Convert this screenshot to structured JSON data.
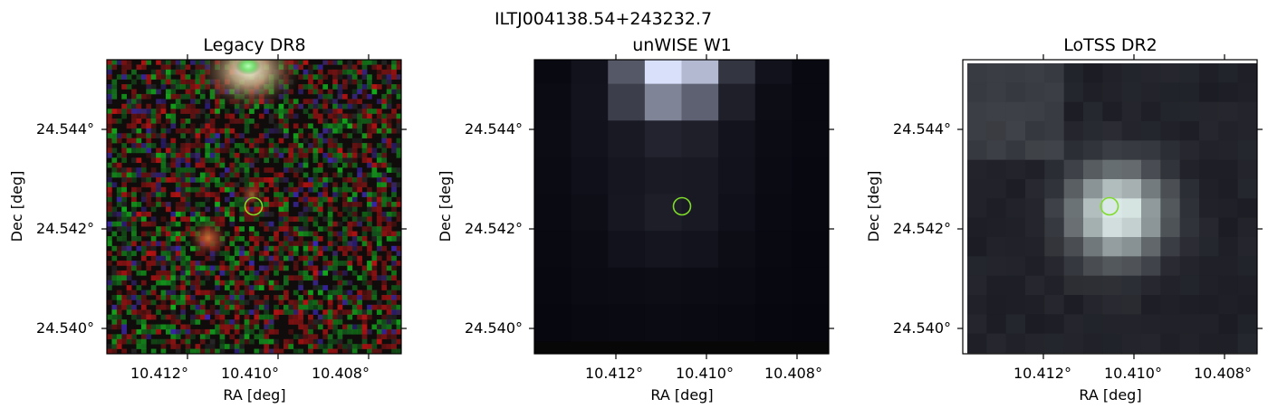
{
  "figure": {
    "suptitle": "ILTJ004138.54+243232.7"
  },
  "panels": [
    {
      "title": "Legacy DR8",
      "xlabel": "RA [deg]",
      "ylabel": "Dec [deg]",
      "xticks": [
        "10.412°",
        "10.410°",
        "10.408°"
      ],
      "yticks": [
        "24.544°",
        "24.542°",
        "24.540°"
      ],
      "image_style": "color-noise"
    },
    {
      "title": "unWISE W1",
      "xlabel": "RA [deg]",
      "ylabel": "Dec [deg]",
      "xticks": [
        "10.412°",
        "10.410°",
        "10.408°"
      ],
      "yticks": [
        "24.544°",
        "24.542°",
        "24.540°"
      ],
      "image_style": "grey-coarse"
    },
    {
      "title": "LoTSS DR2",
      "xlabel": "RA [deg]",
      "ylabel": "Dec [deg]",
      "xticks": [
        "10.412°",
        "10.410°",
        "10.408°"
      ],
      "yticks": [
        "24.544°",
        "24.542°",
        "24.540°"
      ],
      "image_style": "radio-blob"
    }
  ],
  "marker": {
    "shape": "circle",
    "color": "#7fdc2a"
  },
  "colors": {
    "legacy_bright_green": "#7cf07c",
    "legacy_red_blob": "#d05030",
    "unwise_max": "#ffffff",
    "lotss_center": "#dff3f0",
    "lotss_background": "#14131a"
  }
}
